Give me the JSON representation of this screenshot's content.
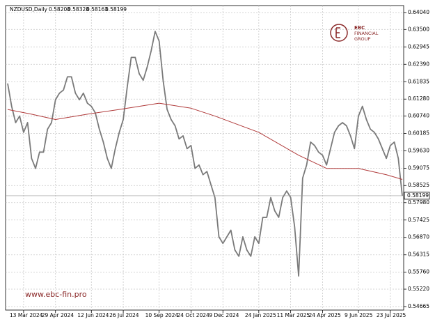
{
  "chart_data": {
    "type": "line",
    "title": "NZDUSD,Daily",
    "quote": [
      0.58208,
      0.58328,
      0.58163,
      0.58199
    ],
    "last_price": 0.58199,
    "grid": true,
    "xlim": [
      0,
      99
    ],
    "xticks": [
      {
        "value": 4,
        "label": "13 Mar 2024"
      },
      {
        "value": 12,
        "label": "29 Apr 2024"
      },
      {
        "value": 21,
        "label": "12 Jun 2024"
      },
      {
        "value": 29,
        "label": "26 Jul 2024"
      },
      {
        "value": 38,
        "label": "10 Sep 2024"
      },
      {
        "value": 46,
        "label": "24 Oct 2024"
      },
      {
        "value": 54,
        "label": "9 Dec 2024"
      },
      {
        "value": 63,
        "label": "24 Jan 2025"
      },
      {
        "value": 71,
        "label": "11 Mar 2025"
      },
      {
        "value": 79,
        "label": "24 Apr 2025"
      },
      {
        "value": 88,
        "label": "9 Jun 2025"
      },
      {
        "value": 96,
        "label": "23 Jul 2025"
      }
    ],
    "ylim": [
      0.54554,
      0.64262
    ],
    "yticks": [
      {
        "value": 0.6404,
        "label": "0.64040"
      },
      {
        "value": 0.635,
        "label": "0.63500"
      },
      {
        "value": 0.62945,
        "label": "0.62945"
      },
      {
        "value": 0.6239,
        "label": "0.62390"
      },
      {
        "value": 0.61835,
        "label": "0.61835"
      },
      {
        "value": 0.6128,
        "label": "0.61280"
      },
      {
        "value": 0.6074,
        "label": "0.60740"
      },
      {
        "value": 0.60185,
        "label": "0.60185"
      },
      {
        "value": 0.5963,
        "label": "0.59630"
      },
      {
        "value": 0.59075,
        "label": "0.59075"
      },
      {
        "value": 0.58525,
        "label": "0.58525"
      },
      {
        "value": 0.5798,
        "label": "0.57980"
      },
      {
        "value": 0.57425,
        "label": "0.57425"
      },
      {
        "value": 0.5687,
        "label": "0.56870"
      },
      {
        "value": 0.56315,
        "label": "0.56315"
      },
      {
        "value": 0.5576,
        "label": "0.55760"
      },
      {
        "value": 0.5522,
        "label": "0.55220"
      },
      {
        "value": 0.54665,
        "label": "0.54665"
      }
    ],
    "series": [
      {
        "color": "#7a7a7a",
        "values": [
          0.6178,
          0.6105,
          0.6053,
          0.6074,
          0.6022,
          0.6053,
          0.5939,
          0.5907,
          0.5959,
          0.5959,
          0.6032,
          0.6053,
          0.6126,
          0.6147,
          0.6157,
          0.6199,
          0.6199,
          0.6147,
          0.6126,
          0.6147,
          0.6115,
          0.6105,
          0.6084,
          0.6032,
          0.5991,
          0.5939,
          0.5907,
          0.597,
          0.6022,
          0.6063,
          0.6167,
          0.6261,
          0.6261,
          0.6209,
          0.6188,
          0.623,
          0.6282,
          0.6344,
          0.6313,
          0.6188,
          0.6095,
          0.6063,
          0.6043,
          0.6001,
          0.6011,
          0.597,
          0.598,
          0.5907,
          0.5918,
          0.5887,
          0.5897,
          0.5855,
          0.5814,
          0.5689,
          0.5668,
          0.5689,
          0.571,
          0.5647,
          0.5627,
          0.5689,
          0.5647,
          0.5627,
          0.5689,
          0.5668,
          0.5751,
          0.5751,
          0.5814,
          0.5772,
          0.5751,
          0.5814,
          0.5835,
          0.5814,
          0.572,
          0.5564,
          0.5876,
          0.5918,
          0.5991,
          0.598,
          0.5959,
          0.5949,
          0.5918,
          0.597,
          0.6022,
          0.6043,
          0.6053,
          0.6043,
          0.6011,
          0.597,
          0.6074,
          0.6105,
          0.6063,
          0.6032,
          0.6022,
          0.6001,
          0.597,
          0.5939,
          0.598,
          0.5991,
          0.5939,
          0.58199
        ]
      },
      {
        "color": "#b03a3a",
        "x": [
          0,
          6,
          12,
          20,
          28,
          38,
          46,
          52,
          63,
          73,
          80,
          88,
          95,
          99
        ],
        "values": [
          0.6095,
          0.608,
          0.6063,
          0.608,
          0.6095,
          0.6115,
          0.6099,
          0.6074,
          0.6022,
          0.5949,
          0.5907,
          0.5907,
          0.5887,
          0.5872
        ]
      }
    ]
  },
  "branding": {
    "logo": "EBC",
    "logo_line1": "FINANCIAL",
    "logo_line2": "GROUP",
    "website": "www.ebc-fin.pro"
  }
}
